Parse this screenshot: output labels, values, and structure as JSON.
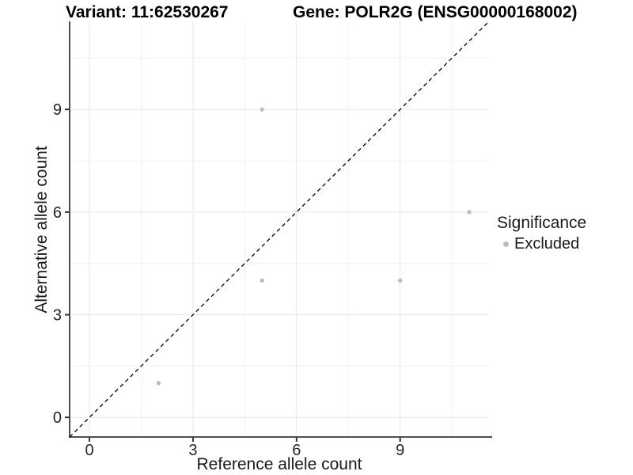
{
  "chart_data": {
    "type": "scatter",
    "title_left": "Variant: 11:62530267",
    "title_right": "Gene: POLR2G (ENSG00000168002)",
    "xlabel": "Reference allele count",
    "ylabel": "Alternative allele count",
    "x_ticks": [
      0,
      3,
      6,
      9
    ],
    "y_ticks": [
      0,
      3,
      6,
      9
    ],
    "x_minor_breaks": [
      1.5,
      4.5,
      7.5,
      10.5
    ],
    "y_minor_breaks": [
      1.5,
      4.5,
      7.5,
      10.5
    ],
    "xlim": [
      -0.574,
      11.574
    ],
    "ylim": [
      -0.574,
      11.574
    ],
    "grid": true,
    "identity_line": {
      "equation": "y = x",
      "style": "dashed",
      "color": "#000000"
    },
    "series": [
      {
        "name": "Excluded",
        "marker": "circle",
        "color": "#bdbdbd",
        "points": [
          {
            "x": 2,
            "y": 1
          },
          {
            "x": 5,
            "y": 4
          },
          {
            "x": 9,
            "y": 4
          },
          {
            "x": 5,
            "y": 9
          },
          {
            "x": 11,
            "y": 6
          }
        ]
      }
    ],
    "legend": {
      "title": "Significance",
      "position": "right",
      "entries": [
        {
          "label": "Excluded",
          "marker": "circle",
          "color": "#bdbdbd"
        }
      ]
    }
  },
  "style": {
    "background": "#ffffff",
    "point_color": "#bdbdbd",
    "grid_major_color": "#e8e8e8",
    "grid_minor_color": "#f2f2f2",
    "axis_line_color": "#4d4d4d",
    "tick_color": "#333333",
    "tick_label_color": "#262626",
    "text_color": "#1a1a1a",
    "title_color": "#000000"
  }
}
